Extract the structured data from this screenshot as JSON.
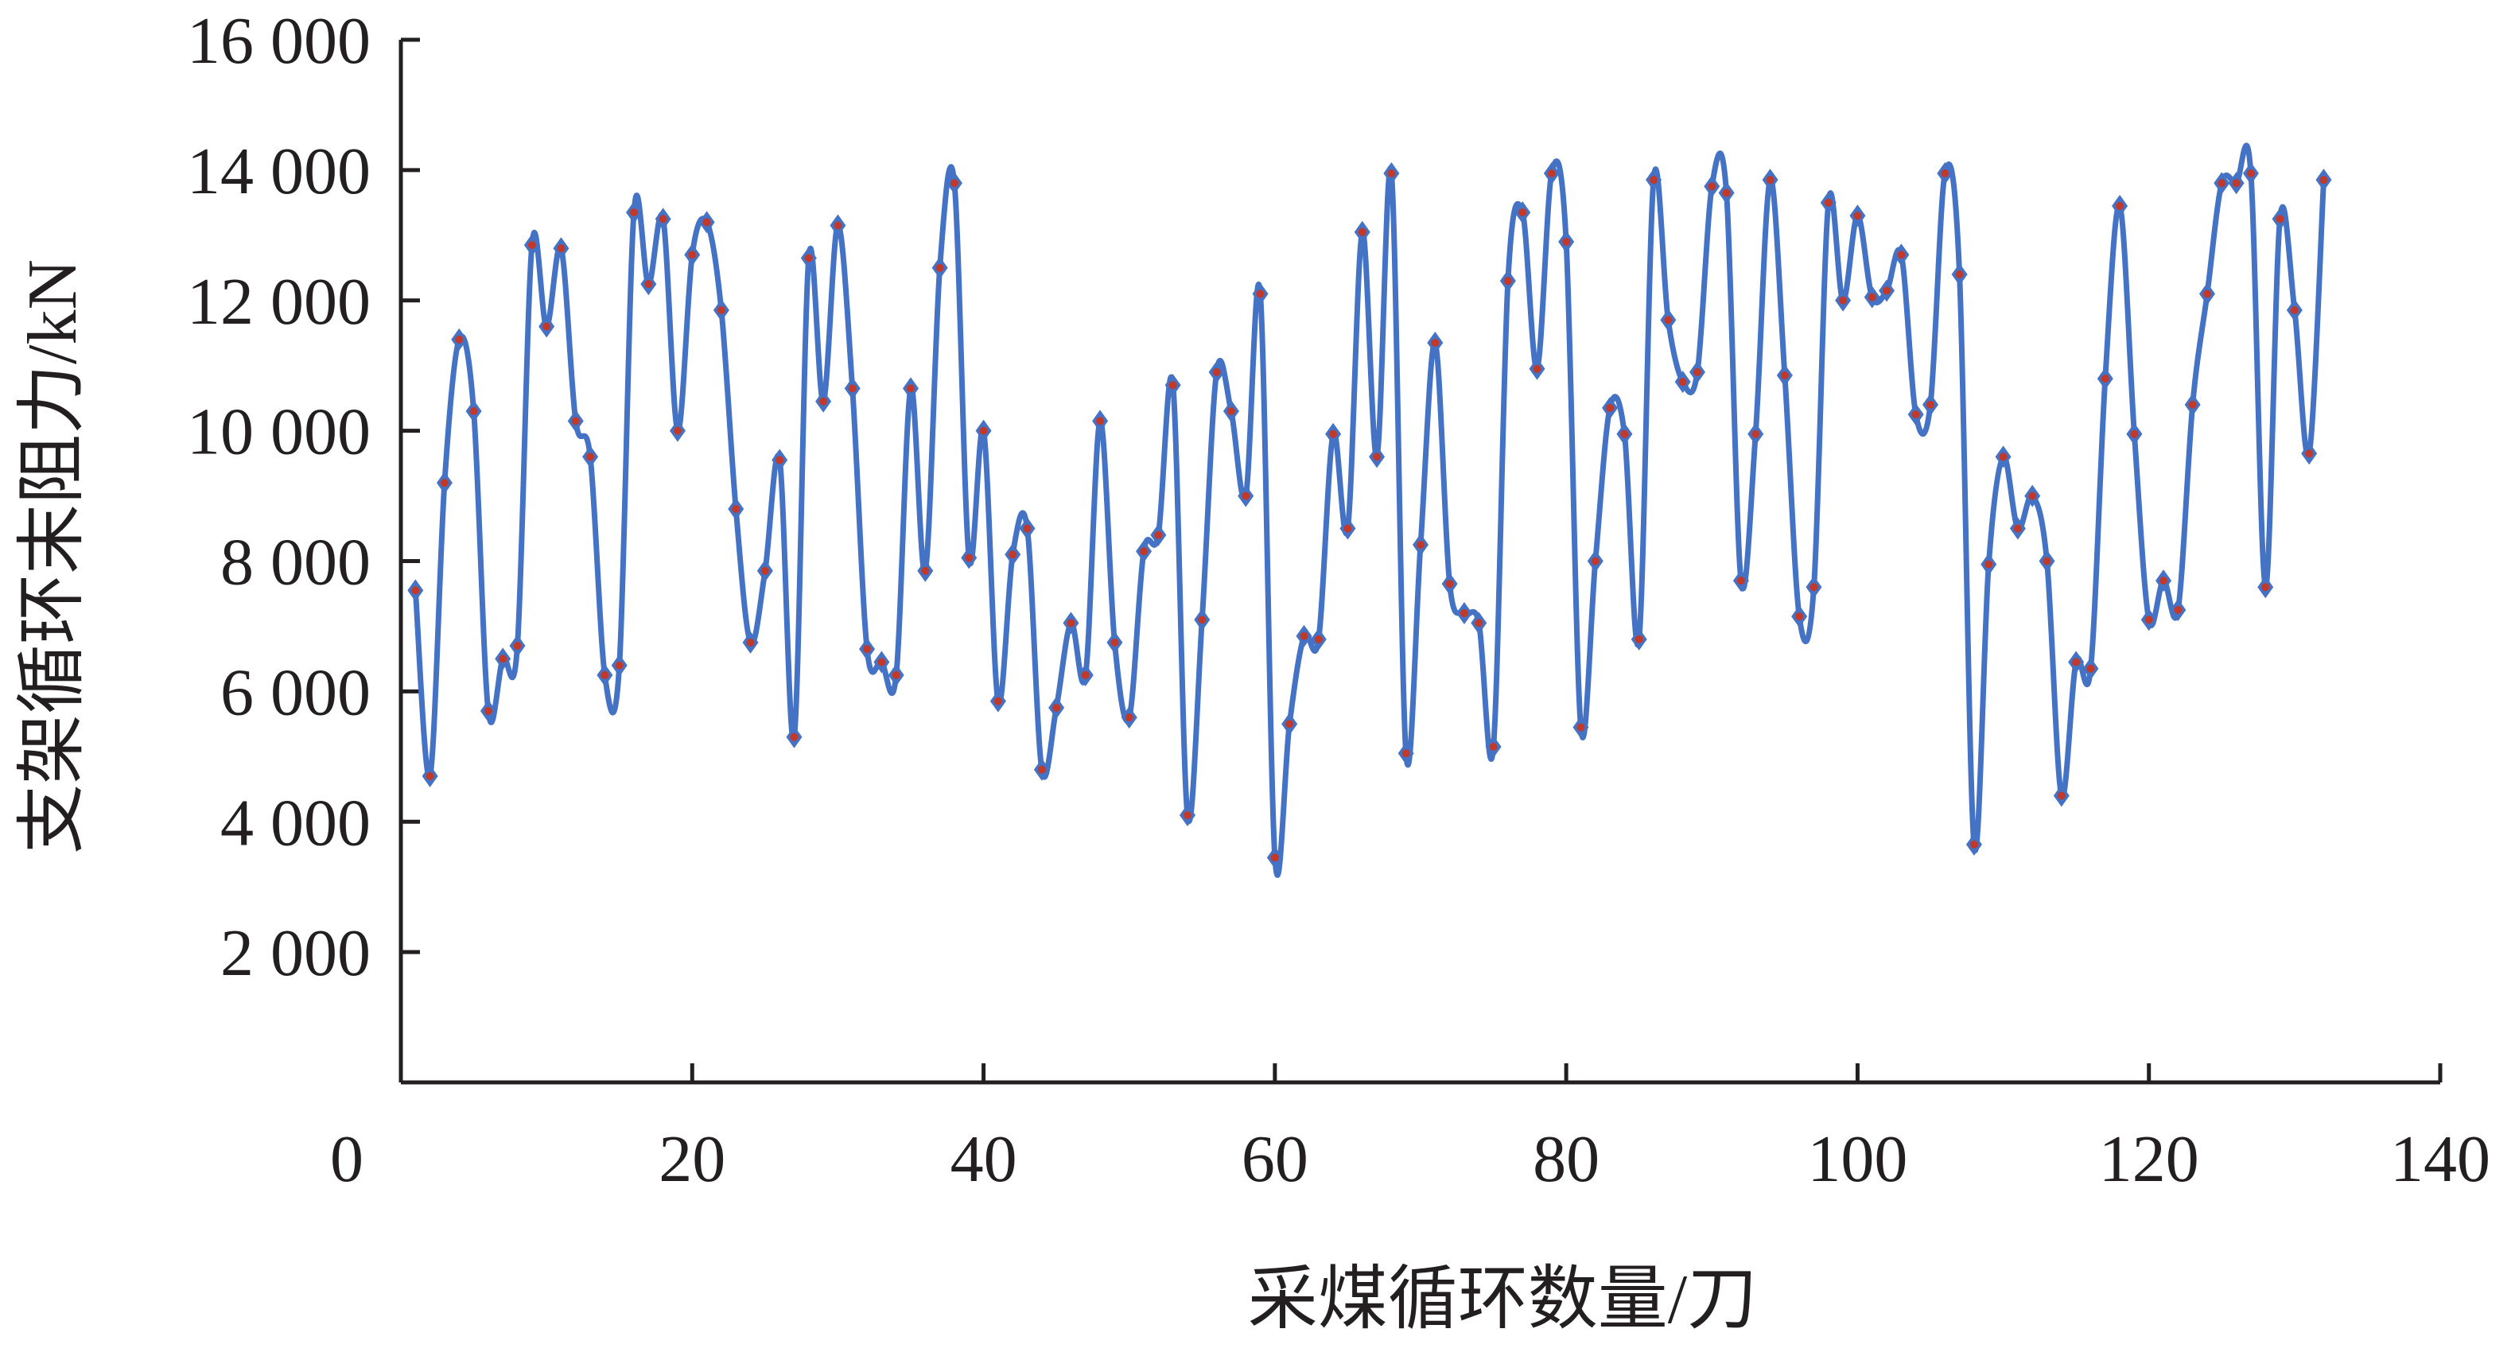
{
  "chart_data": {
    "type": "line",
    "title": "",
    "xlabel": "采煤循环数量/刀",
    "ylabel": "支架循环末阻力/kN",
    "xlim": [
      0,
      140
    ],
    "ylim": [
      0,
      16000
    ],
    "xticks": [
      0,
      20,
      40,
      60,
      80,
      100,
      120,
      140
    ],
    "yticks": [
      2000,
      4000,
      6000,
      8000,
      10000,
      12000,
      14000,
      16000
    ],
    "xtick_labels": [
      "0",
      "20",
      "40",
      "60",
      "80",
      "100",
      "120",
      "140"
    ],
    "ytick_labels": [
      "2 000",
      "4 000",
      "6 000",
      "8 000",
      "10 000",
      "12 000",
      "14 000",
      "16 000"
    ],
    "grid": false,
    "legend": false,
    "line_color": "#4472c4",
    "marker_color": "#c0392b",
    "series": [
      {
        "x": [
          1,
          2,
          3,
          4,
          5,
          6,
          7,
          8,
          9,
          10,
          11,
          12,
          13,
          14,
          15,
          16,
          17,
          18,
          19,
          20,
          21,
          22,
          23,
          24,
          25,
          26,
          27,
          28,
          29,
          30,
          31,
          32,
          33,
          34,
          35,
          36,
          37,
          38,
          39,
          40,
          41,
          42,
          43,
          44,
          45,
          46,
          47,
          48,
          49,
          50,
          51,
          52,
          53,
          54,
          55,
          56,
          57,
          58,
          59,
          60,
          61,
          62,
          63,
          64,
          65,
          66,
          67,
          68,
          69,
          70,
          71,
          72,
          73,
          74,
          75,
          76,
          77,
          78,
          79,
          80,
          81,
          82,
          83,
          84,
          85,
          86,
          87,
          88,
          89,
          90,
          91,
          92,
          93,
          94,
          95,
          96,
          97,
          98,
          99,
          100,
          101,
          102,
          103,
          104,
          105,
          106,
          107,
          108,
          109,
          110,
          111,
          112,
          113,
          114,
          115,
          116,
          117,
          118,
          119,
          120,
          121,
          122,
          123,
          124,
          125,
          126,
          127,
          128,
          129,
          130,
          131,
          132
        ],
        "values": [
          7550,
          4700,
          9200,
          11400,
          10300,
          5700,
          6500,
          6700,
          12850,
          11600,
          12800,
          10150,
          9600,
          6250,
          6400,
          13350,
          12250,
          13250,
          10000,
          12700,
          13200,
          11850,
          8800,
          6750,
          7850,
          9550,
          5300,
          12650,
          10450,
          13150,
          10650,
          6650,
          6450,
          6250,
          10650,
          7850,
          12500,
          13800,
          8050,
          10000,
          5850,
          8100,
          8500,
          4800,
          5750,
          7050,
          6250,
          10150,
          6750,
          5600,
          8150,
          8400,
          10700,
          4100,
          7100,
          10900,
          10300,
          9000,
          12100,
          3450,
          5500,
          6850,
          6800,
          9950,
          8500,
          13050,
          9600,
          13950,
          5050,
          8250,
          11350,
          7650,
          7200,
          7050,
          5150,
          12300,
          13350,
          10950,
          13950,
          12900,
          5450,
          8000,
          10350,
          9950,
          6800,
          13850,
          11700,
          10750,
          10900,
          13750,
          13650,
          7700,
          9950,
          13850,
          10850,
          7150,
          7600,
          13500,
          12000,
          13300,
          12050,
          12150,
          12700,
          10250,
          10400,
          13950,
          12400,
          3650,
          7950,
          9600,
          8500,
          9000,
          8000,
          4400,
          6450,
          6350,
          10800,
          13450,
          9950,
          7100,
          7700,
          7250,
          10400,
          12100,
          13800,
          13800,
          13950,
          7600,
          13250,
          11850,
          9650,
          13850
        ]
      }
    ]
  }
}
